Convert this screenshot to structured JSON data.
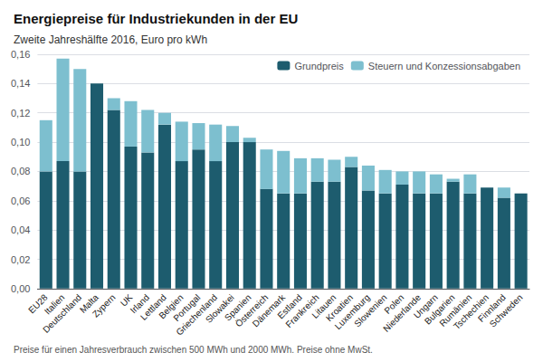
{
  "chart_data": {
    "type": "bar",
    "title": "Energiepreise für Industriekunden in der EU",
    "subtitle": "Zweite Jahreshälfte 2016, Euro pro kWh",
    "footnote": "Preise für einen Jahresverbrauch zwischen 500 MWh und 2000 MWh. Preise ohne MwSt.",
    "categories": [
      "EU28",
      "Italien",
      "Deutschland",
      "Malta",
      "Zypern",
      "UK",
      "Irland",
      "Lettland",
      "Belgien",
      "Portugal",
      "Griechenland",
      "Slowakei",
      "Spanien",
      "Österreich",
      "Dänemark",
      "Estland",
      "Frankreich",
      "Litauen",
      "Kroatien",
      "Luxemburg",
      "Slowenien",
      "Polen",
      "Niederlande",
      "Ungarn",
      "Bulgarien",
      "Rumänien",
      "Tschechien",
      "Finnland",
      "Schweden"
    ],
    "series": [
      {
        "name": "Grundpreis",
        "color": "#1d5c6e",
        "values": [
          0.08,
          0.087,
          0.08,
          0.14,
          0.122,
          0.097,
          0.093,
          0.112,
          0.087,
          0.095,
          0.087,
          0.1,
          0.1,
          0.068,
          0.065,
          0.065,
          0.073,
          0.073,
          0.083,
          0.067,
          0.065,
          0.071,
          0.065,
          0.065,
          0.073,
          0.065,
          0.069,
          0.062,
          0.065
        ]
      },
      {
        "name": "Steuern und Konzessionsabgaben",
        "color": "#7dbfcf",
        "values": [
          0.035,
          0.07,
          0.07,
          0.0,
          0.008,
          0.031,
          0.029,
          0.008,
          0.027,
          0.018,
          0.025,
          0.011,
          0.003,
          0.027,
          0.029,
          0.024,
          0.016,
          0.015,
          0.007,
          0.017,
          0.016,
          0.009,
          0.015,
          0.013,
          0.002,
          0.013,
          0.0,
          0.007,
          0.0
        ]
      }
    ],
    "stacked": true,
    "legend": "upper right",
    "grid": true,
    "ylim": [
      0,
      0.16
    ],
    "yticks": [
      {
        "value": 0.0,
        "label": "0,00"
      },
      {
        "value": 0.02,
        "label": "0,02"
      },
      {
        "value": 0.04,
        "label": "0,04"
      },
      {
        "value": 0.06,
        "label": "0,06"
      },
      {
        "value": 0.08,
        "label": "0,08"
      },
      {
        "value": 0.1,
        "label": "0,10"
      },
      {
        "value": 0.12,
        "label": "0,12"
      },
      {
        "value": 0.14,
        "label": "0,14"
      },
      {
        "value": 0.16,
        "label": "0,16"
      }
    ]
  }
}
